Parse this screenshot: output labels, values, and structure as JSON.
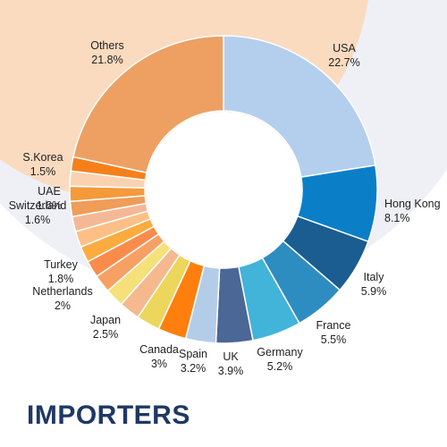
{
  "chart_data": {
    "type": "pie",
    "donut": true,
    "title": "IMPORTERS",
    "slices": [
      {
        "label": "USA",
        "value": 22.7,
        "value_text": "22.7%",
        "color": "#b4cfed"
      },
      {
        "label": "Hong Kong",
        "value": 8.1,
        "value_text": "8.1%",
        "color": "#0a7fc8"
      },
      {
        "label": "Italy",
        "value": 5.9,
        "value_text": "5.9%",
        "color": "#1b5d91"
      },
      {
        "label": "France",
        "value": 5.5,
        "value_text": "5.5%",
        "color": "#2e8dc0"
      },
      {
        "label": "Germany",
        "value": 5.2,
        "value_text": "5.2%",
        "color": "#42b4d9"
      },
      {
        "label": "UK",
        "value": 3.9,
        "value_text": "3.9%",
        "color": "#4a6796"
      },
      {
        "label": "Spain",
        "value": 3.2,
        "value_text": "3.2%",
        "color": "#b3cde9"
      },
      {
        "label": "Canada",
        "value": 3.0,
        "value_text": "3%",
        "color": "#ff7f0e"
      },
      {
        "label": "Japan",
        "value": 2.5,
        "value_text": "2.5%",
        "color": "#ecd65b"
      },
      {
        "label": "",
        "value": 2.2,
        "value_text": "",
        "color": "#f5b88f"
      },
      {
        "label": "Netherlands",
        "value": 2.0,
        "value_text": "2%",
        "color": "#f6e07a"
      },
      {
        "label": "",
        "value": 1.9,
        "value_text": "",
        "color": "#f7a064"
      },
      {
        "label": "Turkey",
        "value": 1.8,
        "value_text": "1.8%",
        "color": "#f98c4c"
      },
      {
        "label": "",
        "value": 1.7,
        "value_text": "",
        "color": "#fcab3f"
      },
      {
        "label": "",
        "value": 1.7,
        "value_text": "",
        "color": "#fdbf86"
      },
      {
        "label": "Switzerland",
        "value": 1.6,
        "value_text": "1.6%",
        "color": "#f5b896"
      },
      {
        "label": "",
        "value": 1.6,
        "value_text": "",
        "color": "#ef9d59"
      },
      {
        "label": "UAE",
        "value": 1.6,
        "value_text": "1.6%",
        "color": "#f49a3a"
      },
      {
        "label": "",
        "value": 1.6,
        "value_text": "",
        "color": "#fbd2b0"
      },
      {
        "label": "S.Korea",
        "value": 1.5,
        "value_text": "1.5%",
        "color": "#f5801a"
      },
      {
        "label": "Others",
        "value": 21.8,
        "value_text": "21.8%",
        "color": "#eda062"
      }
    ]
  }
}
